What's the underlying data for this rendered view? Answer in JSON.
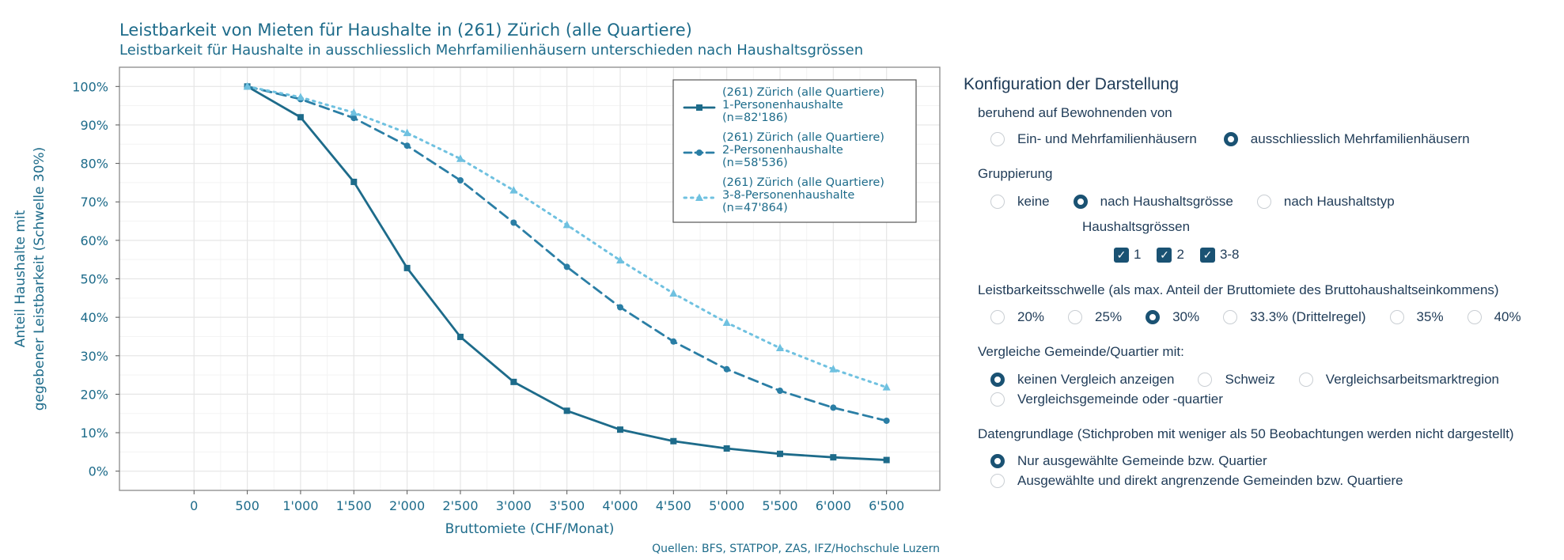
{
  "chart_data": {
    "type": "line",
    "title": "Leistbarkeit von Mieten für Haushalte in (261) Zürich (alle Quartiere)",
    "subtitle": "Leistbarkeit für Haushalte in ausschliesslich Mehrfamilienhäusern unterschieden nach Haushaltsgrössen",
    "xlabel": "Bruttomiete (CHF/Monat)",
    "ylabel_line1": "Anteil Haushalte mit",
    "ylabel_line2": "gegebener Leistbarkeit (Schwelle 30%)",
    "source": "Quellen: BFS, STATPOP, ZAS, IFZ/Hochschule Luzern",
    "xlim": [
      -700,
      7000
    ],
    "ylim": [
      -0.05,
      1.05
    ],
    "x_ticks": [
      0,
      500,
      1000,
      1500,
      2000,
      2500,
      3000,
      3500,
      4000,
      4500,
      5000,
      5500,
      6000,
      6500
    ],
    "x_tick_labels": [
      "0",
      "500",
      "1'000",
      "1'500",
      "2'000",
      "2'500",
      "3'000",
      "3'500",
      "4'000",
      "4'500",
      "5'000",
      "5'500",
      "6'000",
      "6'500"
    ],
    "y_ticks": [
      0,
      0.1,
      0.2,
      0.3,
      0.4,
      0.5,
      0.6,
      0.7,
      0.8,
      0.9,
      1.0
    ],
    "y_tick_labels": [
      "0%",
      "10%",
      "20%",
      "30%",
      "40%",
      "50%",
      "60%",
      "70%",
      "80%",
      "90%",
      "100%"
    ],
    "x": [
      500,
      1000,
      1500,
      2000,
      2500,
      3000,
      3500,
      4000,
      4500,
      5000,
      5500,
      6000,
      6500
    ],
    "legend_position": "top-right",
    "series": [
      {
        "name": "1-Personenhaushalte",
        "legend_lines": [
          "(261) Zürich (alle Quartiere)",
          "1-Personenhaushalte",
          "(n=82'186)"
        ],
        "color": "#1d6b8a",
        "dash": "solid",
        "marker": "square",
        "values": [
          1.0,
          0.92,
          0.752,
          0.528,
          0.349,
          0.232,
          0.157,
          0.108,
          0.078,
          0.059,
          0.045,
          0.036,
          0.029
        ]
      },
      {
        "name": "2-Personenhaushalte",
        "legend_lines": [
          "(261) Zürich (alle Quartiere)",
          "2-Personenhaushalte",
          "(n=58'536)"
        ],
        "color": "#2a7ea5",
        "dash": "dashed",
        "marker": "circle",
        "values": [
          1.0,
          0.967,
          0.918,
          0.846,
          0.756,
          0.646,
          0.531,
          0.426,
          0.337,
          0.265,
          0.209,
          0.165,
          0.131
        ]
      },
      {
        "name": "3-8-Personenhaushalte",
        "legend_lines": [
          "(261) Zürich (alle Quartiere)",
          "3-8-Personenhaushalte",
          "(n=47'864)"
        ],
        "color": "#6fc1e0",
        "dash": "dotted",
        "marker": "triangle",
        "values": [
          1.0,
          0.972,
          0.932,
          0.879,
          0.812,
          0.73,
          0.64,
          0.548,
          0.462,
          0.386,
          0.32,
          0.265,
          0.218
        ]
      }
    ]
  },
  "config": {
    "title": "Konfiguration der Darstellung",
    "basis": {
      "label": "beruhend auf Bewohnenden von",
      "options": [
        "Ein- und Mehrfamilienhäusern",
        "ausschliesslich Mehrfamilienhäusern"
      ],
      "selected": "ausschliesslich Mehrfamilienhäusern"
    },
    "grouping": {
      "label": "Gruppierung",
      "options": [
        "keine",
        "nach Haushaltsgrösse",
        "nach Haushaltstyp"
      ],
      "selected": "nach Haushaltsgrösse",
      "sizes_label": "Haushaltsgrössen",
      "sizes": [
        "1",
        "2",
        "3-8"
      ],
      "checkmark": "✓"
    },
    "threshold": {
      "label": "Leistbarkeitsschwelle (als max. Anteil der Bruttomiete des Bruttohaushaltseinkommens)",
      "options": [
        "20%",
        "25%",
        "30%",
        "33.3% (Drittelregel)",
        "35%",
        "40%"
      ],
      "selected": "30%"
    },
    "compare": {
      "label": "Vergleiche Gemeinde/Quartier mit:",
      "options": [
        "keinen Vergleich anzeigen",
        "Schweiz",
        "Vergleichsarbeitsmarktregion",
        "Vergleichsgemeinde oder -quartier"
      ],
      "selected": "keinen Vergleich anzeigen"
    },
    "data_basis": {
      "label": "Datengrundlage (Stichproben mit weniger als 50 Beobachtungen werden nicht dargestellt)",
      "options": [
        "Nur ausgewählte Gemeinde bzw. Quartier",
        "Ausgewählte und direkt angrenzende Gemeinden bzw. Quartiere"
      ],
      "selected": "Nur ausgewählte Gemeinde bzw. Quartier"
    }
  }
}
